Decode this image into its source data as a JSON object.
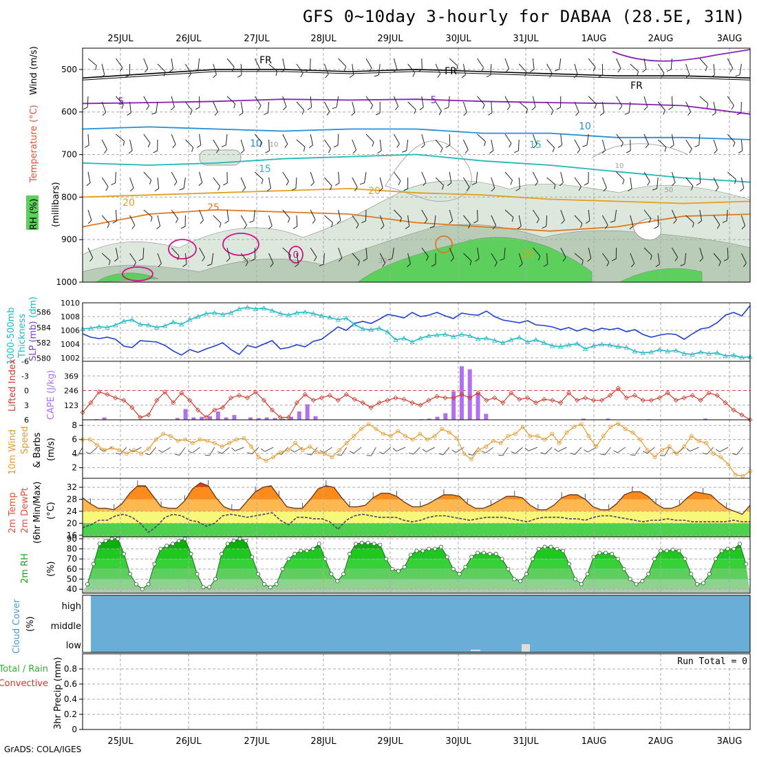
{
  "title": "GFS 0~10day 3-hourly for DABAA (28.5E, 31N)",
  "credit": "GrADS: COLA/IGES",
  "dates": [
    "25JUL",
    "26JUL",
    "27JUL",
    "28JUL",
    "29JUL",
    "30JUL",
    "31JUL",
    "1AUG",
    "2AUG",
    "3AUG"
  ],
  "colors": {
    "rh_light": "#d9ead9",
    "rh_mid": "#a9c9a9",
    "rh_green": "#5ccf5c",
    "cloud": "#6aaed6",
    "slp": "#1f3fcf",
    "thick": "#1fb8c8",
    "li": "#d03a2a",
    "cape": "#b070f0",
    "wind10": "#e69a2a"
  },
  "chart_data": [
    {
      "panel": "upper-air",
      "type": "contour",
      "ylabel_parts": [
        "RH (%)",
        "Temperature",
        "(°C)",
        "Wind (m/s)",
        "(millibars)"
      ],
      "y_ticks": [
        "500",
        "600",
        "700",
        "800",
        "900",
        "1000"
      ],
      "ylim": [
        1000,
        450
      ],
      "contour_labels": [
        "FR",
        "FR",
        "FR",
        "5",
        "5",
        "10",
        "10",
        "15",
        "15",
        "20",
        "20",
        "25",
        "10",
        "10",
        "0",
        "30",
        "30",
        "20",
        "50"
      ],
      "isotherms": [
        {
          "label": "FR",
          "pressure": [
            520,
            510,
            500,
            500,
            505,
            500,
            505,
            510,
            515,
            515,
            520
          ]
        },
        {
          "label": "5",
          "pressure": [
            580,
            578,
            575,
            570,
            572,
            570,
            575,
            578,
            580,
            585,
            605
          ]
        },
        {
          "label": "10",
          "pressure": [
            640,
            635,
            640,
            645,
            640,
            640,
            650,
            650,
            660,
            660,
            665
          ]
        },
        {
          "label": "15",
          "pressure": [
            720,
            725,
            720,
            710,
            705,
            700,
            715,
            725,
            740,
            755,
            765
          ]
        },
        {
          "label": "20",
          "pressure": [
            800,
            795,
            790,
            785,
            780,
            790,
            795,
            805,
            810,
            815,
            810
          ]
        },
        {
          "label": "25",
          "pressure": [
            870,
            840,
            830,
            835,
            840,
            860,
            870,
            880,
            870,
            845,
            840
          ]
        }
      ]
    },
    {
      "panel": "slp-thickness",
      "type": "line",
      "ylabel_left": [
        "1000-500mb",
        "Thickness",
        "(dm)"
      ],
      "ylabel_right": "SLP (mb)",
      "left_ticks": [
        "580",
        "582",
        "584",
        "586"
      ],
      "right_ticks": [
        "1002",
        "1004",
        "1006",
        "1008",
        "1010"
      ],
      "slp_ylim": [
        1001.5,
        1010
      ],
      "thick_ylim": [
        579.6,
        587.2
      ],
      "series": [
        {
          "name": "SLP",
          "axis": "right",
          "values": [
            1005.5,
            1005.0,
            1004.8,
            1005.0,
            1004.7,
            1003.7,
            1003.5,
            1004.5,
            1004.4,
            1004.3,
            1003.8,
            1003.0,
            1002.4,
            1003.2,
            1002.8,
            1003.3,
            1003.7,
            1004.2,
            1003.2,
            1002.5,
            1003.8,
            1003.5,
            1004.0,
            1004.5,
            1003.3,
            1003.5,
            1003.9,
            1003.6,
            1004.4,
            1004.7,
            1005.6,
            1006.5,
            1006.0,
            1007.0,
            1007.3,
            1007.0,
            1007.6,
            1008.3,
            1008.1,
            1007.8,
            1008.6,
            1008.0,
            1008.2,
            1008.6,
            1008.1,
            1007.7,
            1008.5,
            1008.3,
            1008.2,
            1008.8,
            1008.0,
            1007.5,
            1007.3,
            1007.1,
            1007.4,
            1006.8,
            1006.7,
            1006.5,
            1006.1,
            1006.4,
            1005.9,
            1006.3,
            1005.9,
            1006.3,
            1006.1,
            1006.3,
            1005.8,
            1006.1,
            1005.4,
            1005.0,
            1005.3,
            1005.5,
            1005.4,
            1004.7,
            1005.5,
            1006.2,
            1006.4,
            1007.1,
            1008.2,
            1008.6,
            1008.1,
            1009.6
          ]
        },
        {
          "name": "1000-500mb Thickness",
          "axis": "left",
          "values": [
            583.8,
            583.9,
            584.1,
            584.0,
            584.3,
            584.8,
            585.0,
            584.4,
            584.3,
            584.0,
            584.2,
            584.7,
            584.4,
            585.0,
            585.4,
            585.8,
            585.9,
            585.7,
            585.9,
            586.4,
            586.6,
            586.4,
            586.5,
            586.2,
            585.8,
            585.6,
            585.9,
            586.0,
            585.8,
            585.5,
            585.3,
            585.0,
            585.2,
            584.4,
            583.8,
            583.7,
            583.9,
            583.4,
            582.4,
            582.6,
            582.1,
            582.6,
            582.9,
            583.0,
            583.1,
            582.8,
            583.1,
            582.9,
            582.5,
            582.6,
            582.3,
            582.0,
            582.4,
            582.7,
            582.1,
            582.4,
            582.0,
            581.6,
            581.5,
            581.7,
            581.9,
            581.2,
            581.6,
            581.8,
            581.7,
            581.5,
            581.4,
            580.9,
            580.7,
            580.8,
            581.1,
            580.9,
            581.0,
            580.6,
            580.5,
            580.8,
            580.6,
            580.7,
            580.3,
            580.4,
            580.1,
            580.2
          ]
        }
      ]
    },
    {
      "panel": "lifted-index-cape",
      "type": "bar+line",
      "ylabel_left": "Lifted Index",
      "ylabel_right": "CAPE (J/kg)",
      "left_ticks": [
        "-6",
        "-3",
        "0",
        "3",
        "6"
      ],
      "right_ticks": [
        "123",
        "246",
        "369"
      ],
      "li_ylim": [
        6,
        -6
      ],
      "cape_ylim": [
        0,
        492
      ],
      "series": [
        {
          "name": "Lifted Index",
          "axis": "left",
          "values": [
            4.5,
            2.5,
            0.3,
            0.8,
            1.5,
            2.0,
            3.5,
            5.5,
            5.0,
            2.0,
            0.3,
            2.5,
            0.5,
            2.0,
            4.0,
            5.5,
            4.0,
            3.5,
            1.5,
            1.0,
            1.5,
            0.3,
            2.0,
            4.0,
            5.5,
            5.5,
            2.5,
            0.8,
            2.0,
            1.5,
            1.0,
            2.0,
            0.8,
            1.8,
            2.5,
            3.5,
            2.5,
            2.0,
            1.5,
            1.8,
            2.5,
            3.0,
            2.0,
            1.2,
            1.5,
            1.5,
            0.8,
            1.5,
            0.5,
            2.0,
            1.5,
            2.5,
            0.5,
            1.8,
            1.5,
            2.5,
            1.8,
            2.0,
            2.5,
            0.5,
            2.0,
            1.5,
            2.0,
            2.0,
            1.0,
            -0.5,
            1.5,
            1.0,
            2.0,
            2.0,
            1.5,
            0.5,
            2.0,
            1.5,
            1.0,
            2.0,
            0.5,
            1.0,
            2.5,
            4.0,
            5.0,
            6.0
          ]
        },
        {
          "name": "CAPE",
          "axis": "right",
          "values": [
            0,
            5,
            20,
            0,
            0,
            0,
            0,
            0,
            0,
            0,
            0,
            15,
            90,
            20,
            25,
            30,
            70,
            20,
            40,
            0,
            20,
            15,
            20,
            15,
            10,
            25,
            70,
            130,
            30,
            0,
            0,
            0,
            0,
            0,
            0,
            0,
            0,
            0,
            0,
            0,
            0,
            5,
            10,
            25,
            55,
            240,
            450,
            425,
            230,
            50,
            0,
            0,
            0,
            0,
            0,
            0,
            0,
            0,
            0,
            0,
            0,
            10,
            0,
            0,
            10,
            0,
            0,
            0,
            0,
            5,
            0,
            0,
            0,
            0,
            0,
            0,
            10,
            0,
            0,
            0,
            0,
            0
          ]
        }
      ]
    },
    {
      "panel": "wind10m",
      "type": "line",
      "ylabel_parts": [
        "10m Wind",
        "Speed",
        "& Barbs",
        "(m/s)"
      ],
      "y_ticks": [
        "2",
        "4",
        "6",
        "8"
      ],
      "ylim": [
        0.5,
        8.8
      ],
      "series": [
        {
          "name": "10m Wind Speed",
          "values": [
            6.0,
            6.0,
            5.2,
            4.5,
            4.8,
            4.5,
            4.0,
            4.5,
            4.0,
            4.7,
            6.0,
            6.8,
            6.5,
            5.8,
            6.0,
            5.5,
            6.0,
            5.8,
            5.5,
            5.0,
            5.5,
            6.0,
            6.2,
            5.0,
            3.5,
            3.0,
            3.5,
            4.2,
            4.5,
            5.5,
            4.5,
            5.0,
            4.2,
            4.0,
            3.5,
            4.5,
            5.5,
            6.5,
            7.5,
            8.2,
            7.5,
            6.8,
            6.5,
            7.2,
            6.5,
            6.0,
            6.8,
            6.0,
            6.5,
            7.5,
            7.0,
            6.2,
            4.0,
            3.2,
            4.5,
            5.0,
            5.8,
            5.5,
            6.5,
            6.8,
            7.8,
            6.5,
            6.5,
            6.0,
            6.8,
            5.5,
            7.0,
            7.8,
            8.2,
            6.5,
            5.0,
            6.5,
            7.8,
            8.3,
            7.5,
            7.0,
            6.0,
            4.5,
            3.5,
            4.5,
            5.0,
            4.0,
            5.0,
            6.5,
            5.8,
            5.5,
            4.0,
            3.5,
            2.5,
            1.0,
            0.8,
            1.5
          ]
        }
      ]
    },
    {
      "panel": "temp-dewpoint",
      "type": "area+line",
      "ylabel_parts": [
        "2m Temp",
        "2m DewPt",
        "(6hr Min/Max)",
        "(°C)"
      ],
      "y_ticks": [
        "16",
        "20",
        "24",
        "28",
        "32"
      ],
      "ylim": [
        15.5,
        35
      ],
      "series": [
        {
          "name": "2m Temp",
          "values": [
            28.5,
            26.5,
            25.0,
            25.0,
            24.5,
            26.5,
            30.0,
            32.5,
            32.5,
            29.0,
            25.5,
            25.0,
            25.0,
            27.5,
            31.5,
            33.5,
            32.5,
            28.5,
            25.5,
            24.5,
            24.5,
            27.5,
            30.5,
            32.0,
            32.5,
            29.0,
            25.5,
            25.0,
            25.0,
            28.0,
            31.5,
            32.5,
            32.0,
            28.5,
            25.5,
            25.5,
            26.0,
            28.5,
            30.0,
            30.0,
            29.0,
            27.0,
            25.5,
            25.5,
            26.5,
            28.0,
            29.5,
            29.5,
            29.0,
            26.5,
            25.0,
            25.0,
            26.0,
            27.5,
            29.0,
            29.0,
            28.5,
            26.0,
            24.5,
            24.5,
            26.0,
            28.5,
            29.5,
            29.5,
            28.0,
            25.5,
            24.5,
            24.5,
            26.5,
            29.5,
            30.5,
            30.5,
            29.0,
            26.5,
            25.0,
            25.0,
            26.0,
            28.5,
            30.5,
            30.0,
            29.5,
            27.0,
            25.0,
            24.0,
            23.0,
            26.0
          ]
        },
        {
          "name": "2m DewPt",
          "values": [
            18.5,
            19.5,
            21.0,
            21.0,
            22.5,
            23.0,
            22.0,
            20.0,
            17.0,
            19.0,
            22.0,
            23.0,
            22.5,
            21.0,
            20.5,
            19.0,
            20.0,
            22.5,
            23.0,
            22.5,
            22.0,
            22.5,
            23.0,
            23.5,
            21.0,
            19.5,
            22.0,
            22.0,
            21.5,
            21.5,
            20.5,
            18.0,
            21.0,
            22.5,
            23.0,
            22.5,
            22.0,
            22.0,
            22.0,
            21.0,
            20.5,
            21.0,
            22.0,
            22.5,
            22.5,
            22.0,
            21.5,
            21.0,
            21.5,
            22.0,
            22.0,
            22.0,
            21.5,
            21.0,
            20.5,
            21.5,
            22.0,
            22.0,
            22.0,
            21.5,
            21.5,
            21.0,
            22.0,
            22.5,
            22.5,
            22.0,
            21.5,
            21.0,
            20.5,
            21.0,
            21.0,
            21.5,
            21.0,
            21.0,
            20.5,
            20.5,
            20.5,
            20.5,
            20.5,
            21.0,
            20.5,
            20.5
          ]
        }
      ]
    },
    {
      "panel": "rh2m",
      "type": "area",
      "ylabel_parts": [
        "2m RH",
        "(%)"
      ],
      "y_ticks": [
        "40",
        "50",
        "60",
        "70",
        "80",
        "90"
      ],
      "ylim": [
        36,
        92
      ],
      "series": [
        {
          "name": "2m RH",
          "values": [
            45,
            65,
            85,
            88,
            90,
            90,
            75,
            55,
            45,
            40,
            45,
            65,
            80,
            83,
            85,
            88,
            90,
            75,
            55,
            42,
            42,
            50,
            75,
            85,
            88,
            90,
            88,
            72,
            55,
            45,
            42,
            45,
            60,
            70,
            75,
            78,
            78,
            80,
            85,
            70,
            55,
            48,
            55,
            75,
            85,
            86,
            86,
            85,
            84,
            70,
            60,
            58,
            62,
            74,
            78,
            78,
            80,
            80,
            82,
            72,
            60,
            55,
            62,
            72,
            76,
            76,
            75,
            75,
            70,
            60,
            50,
            48,
            55,
            70,
            80,
            82,
            82,
            80,
            78,
            65,
            50,
            45,
            55,
            72,
            76,
            76,
            75,
            70,
            60,
            50,
            45,
            48,
            55,
            70,
            78,
            78,
            79,
            78,
            70,
            55,
            45,
            46,
            55,
            70,
            78,
            80,
            80,
            85,
            65
          ]
        }
      ]
    },
    {
      "panel": "cloud-cover",
      "type": "heatmap",
      "ylabel_parts": [
        "Cloud Cover",
        "(%)"
      ],
      "levels": [
        "high",
        "middle",
        "low"
      ]
    },
    {
      "panel": "precip",
      "type": "bar",
      "ylabel_parts": [
        "Total / Rain",
        "Convective",
        "3hr Precip (mm)"
      ],
      "y_ticks": [
        "0",
        "0.2",
        "0.4",
        "0.6",
        "0.8"
      ],
      "ylim": [
        0,
        1
      ],
      "run_total": "Run Total = 0",
      "values": []
    }
  ]
}
